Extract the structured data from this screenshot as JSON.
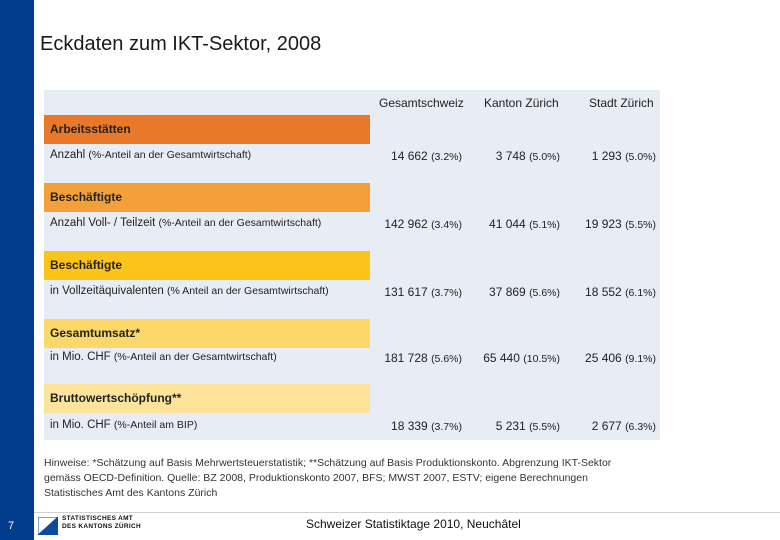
{
  "slide": {
    "title": "Eckdaten zum IKT-Sektor, 2008",
    "number": "7",
    "footer": "Schweizer Statistiktage 2010, Neuchâtel",
    "logo_line1": "STATISTISCHES AMT",
    "logo_line2": "DES KANTONS ZÜRICH"
  },
  "table": {
    "headers": [
      "Gesamtschweiz",
      "Kanton Zürich",
      "Stadt Zürich"
    ],
    "rows": [
      {
        "category": "Arbeitsstätten",
        "color": "#e8782a",
        "label": "Anzahl",
        "desc": "(%-Anteil an der Gesamtwirtschaft)",
        "values": [
          {
            "v": "14 662",
            "p": "(3.2%)"
          },
          {
            "v": "3 748",
            "p": "(5.0%)"
          },
          {
            "v": "1 293",
            "p": "(5.0%)"
          }
        ]
      },
      {
        "category": "Beschäftigte",
        "color": "#f4a03a",
        "label": "Anzahl Voll- / Teilzeit",
        "desc": "(%-Anteil an der Gesamtwirtschaft)",
        "values": [
          {
            "v": "142 962",
            "p": "(3.4%)"
          },
          {
            "v": "41 044",
            "p": "(5.1%)"
          },
          {
            "v": "19 923",
            "p": "(5.5%)"
          }
        ]
      },
      {
        "category": "Beschäftigte",
        "color": "#fcc419",
        "label": "in Vollzeitäquivalenten",
        "desc": "(% Anteil an der Gesamtwirtschaft)",
        "values": [
          {
            "v": "131 617",
            "p": "(3.7%)"
          },
          {
            "v": "37 869",
            "p": "(5.6%)"
          },
          {
            "v": "18 552",
            "p": "(6.1%)"
          }
        ]
      },
      {
        "category": "Gesamtumsatz*",
        "color": "#fcd76a",
        "label": "in Mio. CHF",
        "desc": "(%-Anteil an der Gesamtwirtschaft)",
        "values": [
          {
            "v": "181 728",
            "p": "(5.6%)"
          },
          {
            "v": "65 440",
            "p": "(10.5%)"
          },
          {
            "v": "25 406",
            "p": "(9.1%)"
          }
        ]
      },
      {
        "category": "Bruttowertschöpfung**",
        "color": "#fde49a",
        "label": "in Mio. CHF",
        "desc": "(%-Anteil am BIP)",
        "values": [
          {
            "v": "18 339",
            "p": "(3.7%)"
          },
          {
            "v": "5 231",
            "p": "(5.5%)"
          },
          {
            "v": "2 677",
            "p": "(6.3%)"
          }
        ]
      }
    ]
  },
  "notes": {
    "line1": "Hinweise: *Schätzung auf Basis Mehrwertsteuerstatistik; **Schätzung auf Basis Produktionskonto. Abgrenzung IKT-Sektor",
    "line2": "gemäss OECD-Definition. Quelle: BZ 2008, Produktionskonto 2007, BFS; MWST 2007, ESTV; eigene Berechnungen",
    "line3": "Statistisches Amt des Kantons Zürich"
  }
}
